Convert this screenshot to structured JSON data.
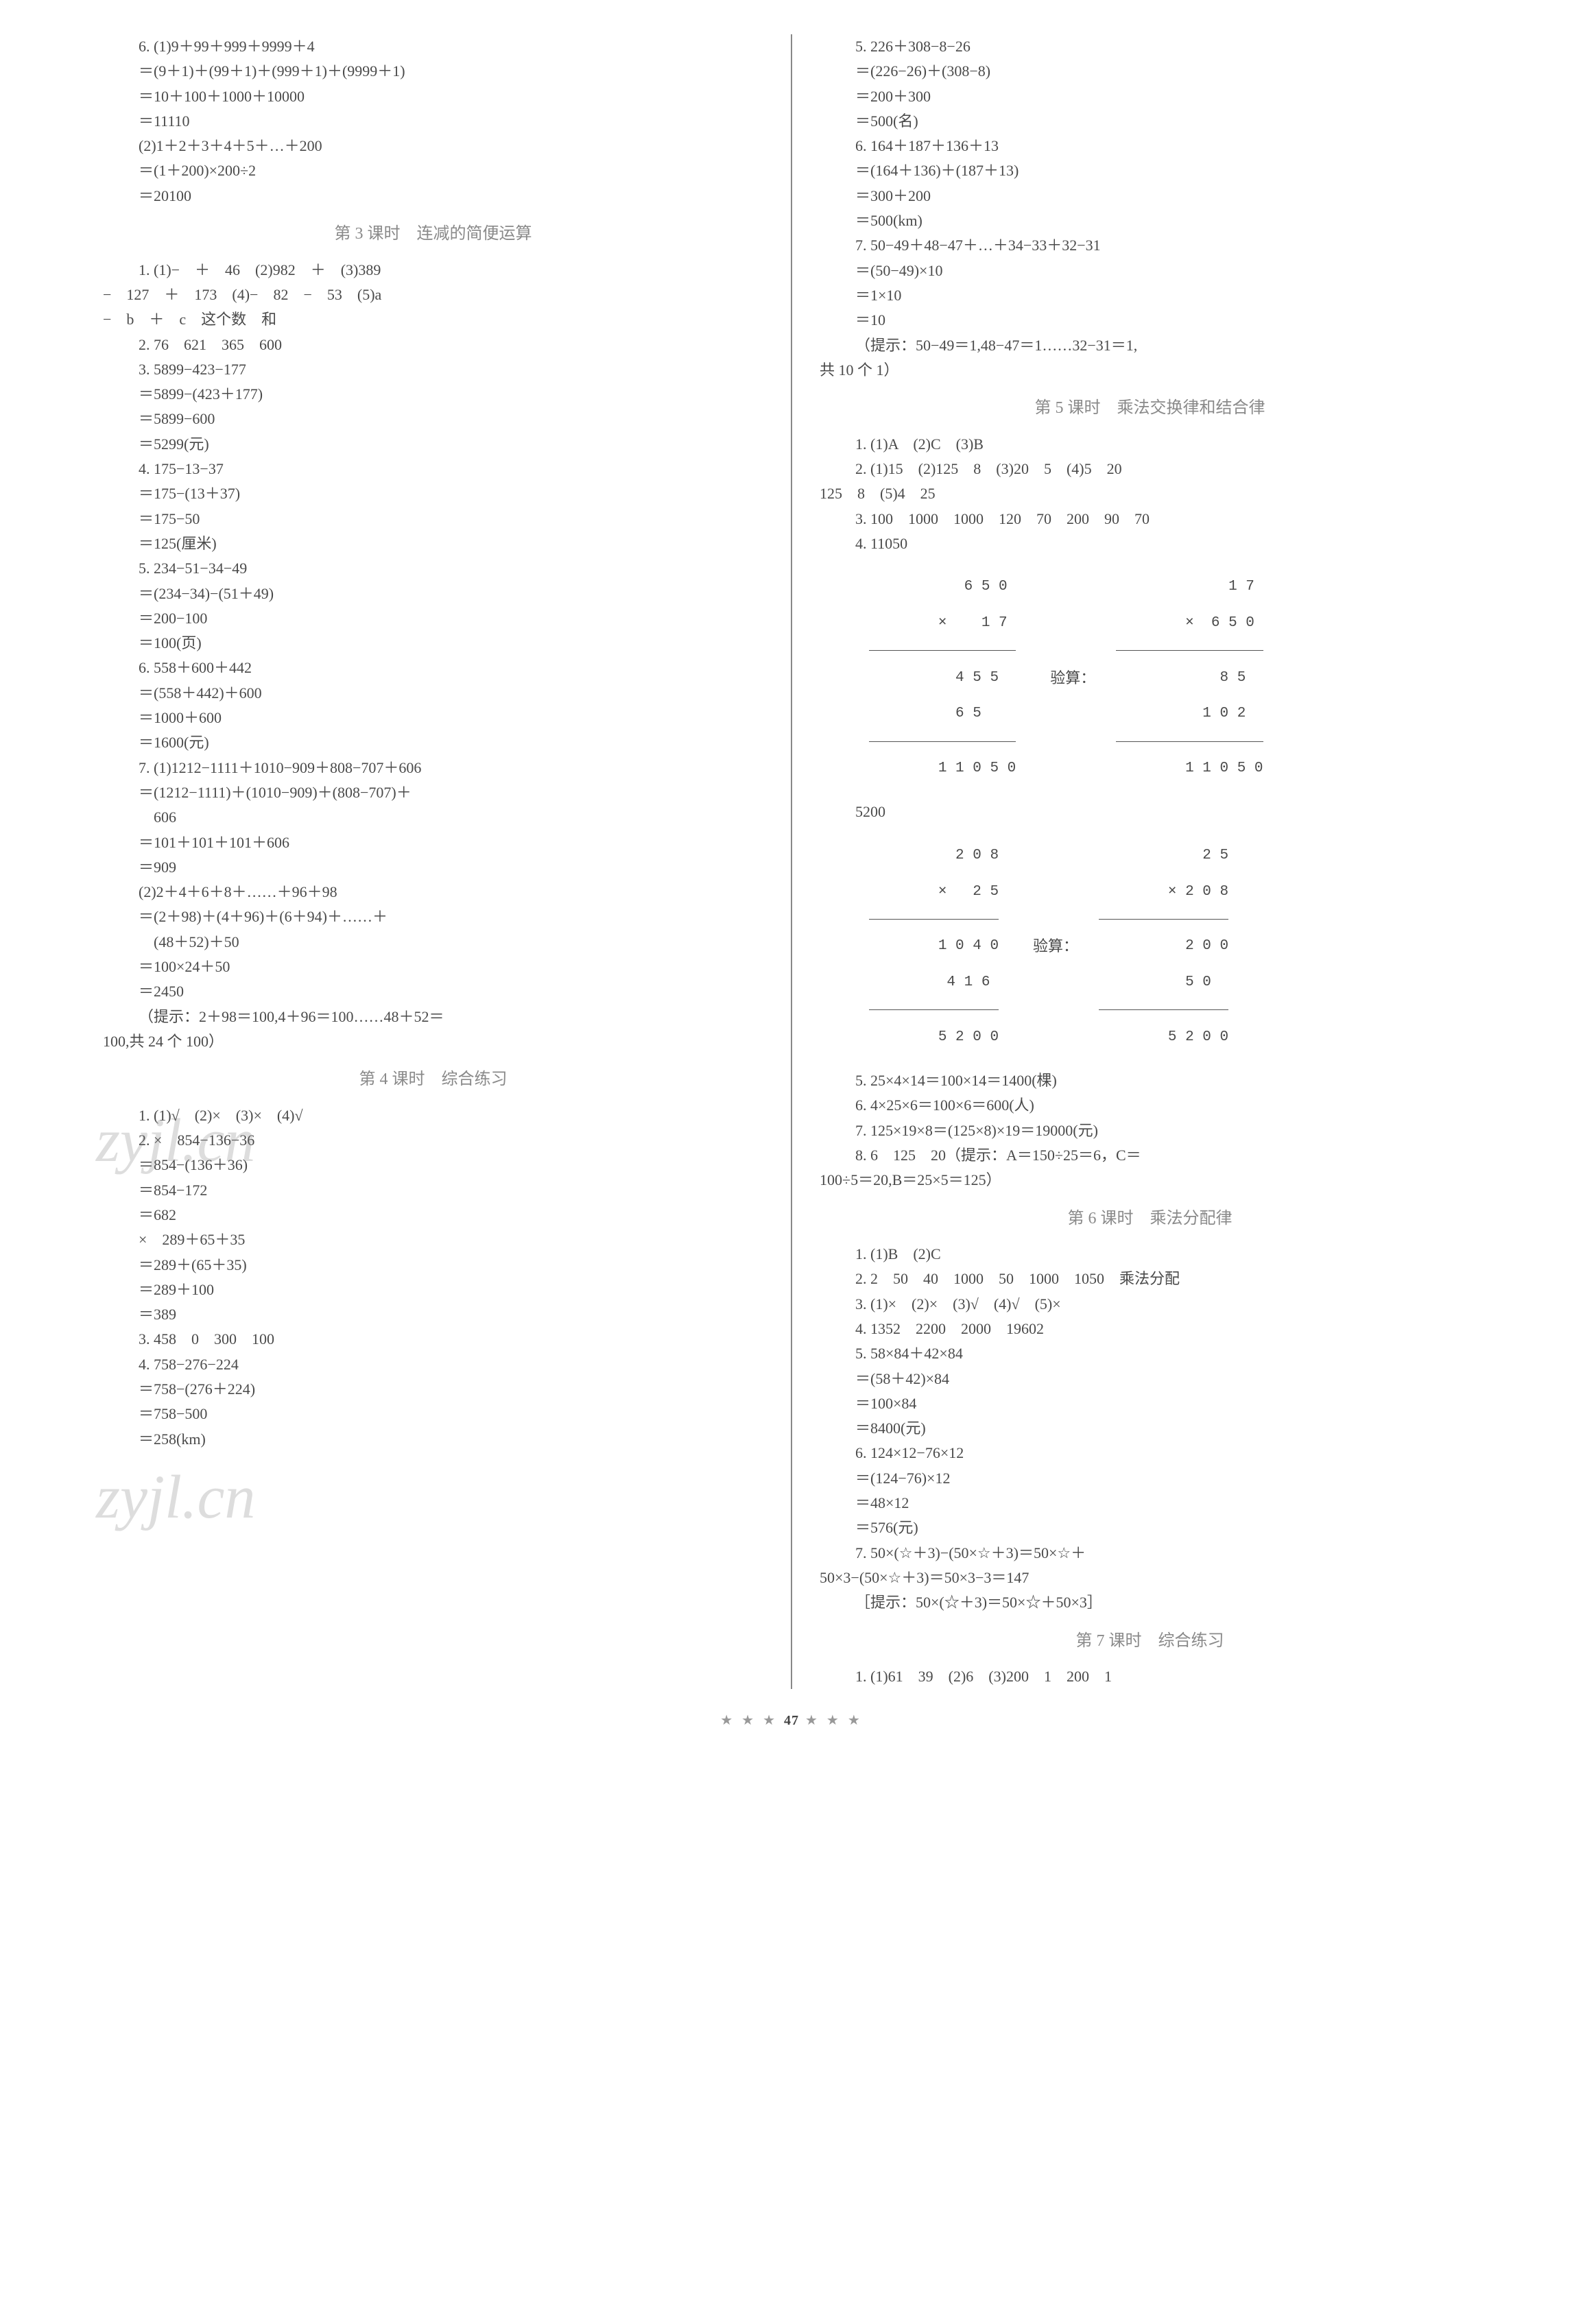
{
  "leftCol": {
    "block1": [
      "6. (1)9＋99＋999＋9999＋4",
      "＝(9＋1)＋(99＋1)＋(999＋1)＋(9999＋1)",
      "＝10＋100＋1000＋10000",
      "＝11110",
      "(2)1＋2＋3＋4＋5＋…＋200",
      "＝(1＋200)×200÷2",
      "＝20100"
    ],
    "heading3": "第 3 课时　连减的简便运算",
    "block3": [
      "1. (1)−　＋　46　(2)982　＋　(3)389",
      "−　127　＋　173　(4)−　82　−　53　(5)a",
      "−　b　＋　c　这个数　和",
      "2. 76　621　365　600",
      "3. 5899−423−177",
      "＝5899−(423＋177)",
      "＝5899−600",
      "＝5299(元)",
      "4. 175−13−37",
      "＝175−(13＋37)",
      "＝175−50",
      "＝125(厘米)",
      "5. 234−51−34−49",
      "＝(234−34)−(51＋49)",
      "＝200−100",
      "＝100(页)",
      "6. 558＋600＋442",
      "＝(558＋442)＋600",
      "＝1000＋600",
      "＝1600(元)",
      "7. (1)1212−1111＋1010−909＋808−707＋606",
      "＝(1212−1111)＋(1010−909)＋(808−707)＋",
      "　606",
      "＝101＋101＋101＋606",
      "＝909",
      "(2)2＋4＋6＋8＋……＋96＋98",
      "＝(2＋98)＋(4＋96)＋(6＋94)＋……＋",
      "　(48＋52)＋50",
      "＝100×24＋50",
      "＝2450",
      "（提示：2＋98＝100,4＋96＝100……48＋52＝",
      "100,共 24 个 100）"
    ],
    "heading4": "第 4 课时　综合练习",
    "block4": [
      "1. (1)√　(2)×　(3)×　(4)√",
      "2. ×　854−136−36",
      "＝854−(136＋36)",
      "＝854−172",
      "＝682",
      "×　289＋65＋35",
      "＝289＋(65＋35)",
      "＝289＋100",
      "＝389",
      "3. 458　0　300　100",
      "4. 758−276−224",
      "＝758−(276＋224)",
      "＝758−500",
      "＝258(km)"
    ]
  },
  "rightCol": {
    "block5top": [
      "5. 226＋308−8−26",
      "＝(226−26)＋(308−8)",
      "＝200＋300",
      "＝500(名)",
      "6. 164＋187＋136＋13",
      "＝(164＋136)＋(187＋13)",
      "＝300＋200",
      "＝500(km)",
      "7. 50−49＋48−47＋…＋34−33＋32−31",
      "＝(50−49)×10",
      "＝1×10",
      "＝10",
      "（提示：50−49＝1,48−47＝1……32−31＝1,",
      "共 10 个 1）"
    ],
    "heading5": "第 5 课时　乘法交换律和结合律",
    "block5a": [
      "1. (1)A　(2)C　(3)B",
      "2. (1)15　(2)125　8　(3)20　5　(4)5　20",
      "125　8　(5)4　25",
      "3. 100　1000　1000　120　70　200　90　70",
      "4. 11050"
    ],
    "vert1": {
      "leftCalc": [
        "   6 5 0",
        "×    1 7",
        "―――――",
        "  4 5 5",
        "  6 5",
        "―――――",
        "1 1 0 5 0"
      ],
      "label": "验算：",
      "rightCalc": [
        "     1 7",
        "×  6 5 0",
        "――――――",
        "    8 5",
        "  1 0 2",
        "――――――",
        "1 1 0 5 0"
      ]
    },
    "line5200": "5200",
    "vert2": {
      "leftCalc": [
        "  2 0 8",
        "×   2 5",
        "―――――",
        "1 0 4 0",
        " 4 1 6",
        "―――――",
        "5 2 0 0"
      ],
      "label": "验算：",
      "rightCalc": [
        "    2 5",
        "× 2 0 8",
        "―――――",
        "  2 0 0",
        "  5 0",
        "―――――",
        "5 2 0 0"
      ]
    },
    "block5b": [
      "5. 25×4×14＝100×14＝1400(棵)",
      "6. 4×25×6＝100×6＝600(人)",
      "7. 125×19×8＝(125×8)×19＝19000(元)",
      "8. 6　125　20（提示：A＝150÷25＝6，C＝",
      "100÷5＝20,B＝25×5＝125）"
    ],
    "heading6": "第 6 课时　乘法分配律",
    "block6": [
      "1. (1)B　(2)C",
      "2. 2　50　40　1000　50　1000　1050　乘法分配",
      "3. (1)×　(2)×　(3)√　(4)√　(5)×",
      "4. 1352　2200　2000　19602",
      "5. 58×84＋42×84",
      "＝(58＋42)×84",
      "＝100×84",
      "＝8400(元)",
      "6. 124×12−76×12",
      "＝(124−76)×12",
      "＝48×12",
      "＝576(元)",
      "7. 50×(☆＋3)−(50×☆＋3)＝50×☆＋",
      "50×3−(50×☆＋3)＝50×3−3＝147",
      "［提示：50×(☆＋3)＝50×☆＋50×3］"
    ],
    "heading7": "第 7 课时　综合练习",
    "block7": [
      "1. (1)61　39　(2)6　(3)200　1　200　1"
    ]
  },
  "footer": {
    "left": "★ ★ ★",
    "page": "47",
    "right": "★ ★ ★"
  },
  "watermarks": {
    "w1": "zyjl.cn",
    "w2": "zyjl.cn"
  }
}
